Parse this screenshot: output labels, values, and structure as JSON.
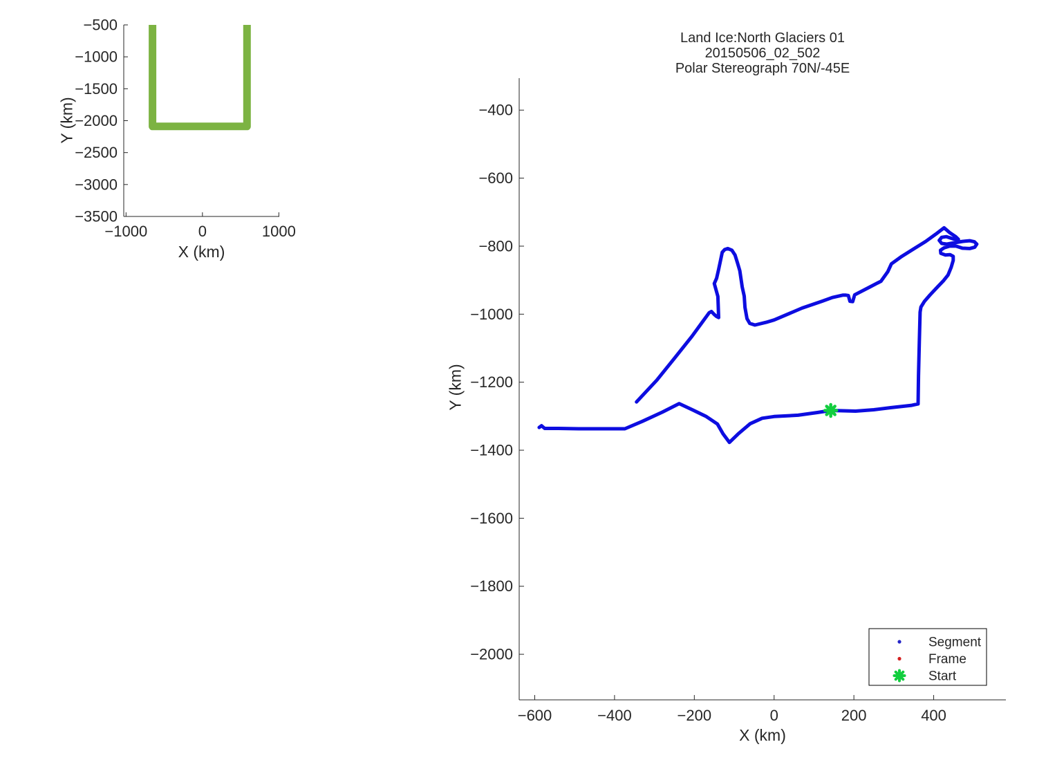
{
  "figure": {
    "background": "#ffffff",
    "axis_color": "#262626",
    "text_color": "#262626"
  },
  "chart_data": [
    {
      "id": "coverage-overview",
      "type": "line",
      "title": [],
      "xlabel": "X (km)",
      "ylabel": "Y (km)",
      "xlim": [
        -1030,
        1006
      ],
      "ylim": [
        -3500,
        -500
      ],
      "xticks": [
        -1000,
        0,
        1000
      ],
      "yticks": [
        -500,
        -1000,
        -1500,
        -2000,
        -2500,
        -3000,
        -3500
      ],
      "grid": false,
      "legend_position": null,
      "series": [
        {
          "name": "coverage-track",
          "color": "#7CB342",
          "width": 11,
          "points": [
            [
              -654,
              -500
            ],
            [
              -654,
              -2090
            ],
            [
              583,
              -2090
            ],
            [
              583,
              -500
            ]
          ]
        }
      ],
      "markers": []
    },
    {
      "id": "flight-track",
      "type": "line",
      "title": [
        "Land Ice:North Glaciers 01",
        "20150506_02_502",
        "Polar Stereograph 70N/-45E"
      ],
      "xlabel": "X (km)",
      "ylabel": "Y (km)",
      "xlim": [
        -639,
        581
      ],
      "ylim": [
        -2134,
        -306
      ],
      "xticks": [
        -600,
        -400,
        -200,
        0,
        200,
        400
      ],
      "yticks": [
        -400,
        -600,
        -800,
        -1000,
        -1200,
        -1400,
        -1600,
        -1800,
        -2000
      ],
      "grid": false,
      "legend_position": "southeast",
      "series": [
        {
          "name": "Segment",
          "color": "#0D0DE0",
          "width": 5,
          "points": [
            [
              -345,
              -1258
            ],
            [
              -294,
              -1194
            ],
            [
              -250,
              -1130
            ],
            [
              -206,
              -1065
            ],
            [
              -168,
              -1004
            ],
            [
              -163,
              -996
            ],
            [
              -157,
              -992
            ],
            [
              -150,
              -1001
            ],
            [
              -144,
              -1007
            ],
            [
              -139,
              -1010
            ],
            [
              -140,
              -975
            ],
            [
              -141,
              -948
            ],
            [
              -150,
              -910
            ],
            [
              -144,
              -894
            ],
            [
              -139,
              -868
            ],
            [
              -136,
              -851
            ],
            [
              -130,
              -818
            ],
            [
              -124,
              -810
            ],
            [
              -116,
              -807
            ],
            [
              -106,
              -812
            ],
            [
              -98,
              -826
            ],
            [
              -92,
              -848
            ],
            [
              -86,
              -872
            ],
            [
              -80,
              -920
            ],
            [
              -75,
              -947
            ],
            [
              -73,
              -980
            ],
            [
              -68,
              -1013
            ],
            [
              -61,
              -1027
            ],
            [
              -48,
              -1032
            ],
            [
              -20,
              -1024
            ],
            [
              0,
              -1017
            ],
            [
              70,
              -982
            ],
            [
              120,
              -962
            ],
            [
              146,
              -951
            ],
            [
              172,
              -944
            ],
            [
              180,
              -944
            ],
            [
              186,
              -945
            ],
            [
              190,
              -962
            ],
            [
              197,
              -963
            ],
            [
              202,
              -943
            ],
            [
              240,
              -920
            ],
            [
              268,
              -903
            ],
            [
              285,
              -875
            ],
            [
              294,
              -852
            ],
            [
              320,
              -830
            ],
            [
              350,
              -808
            ],
            [
              380,
              -786
            ],
            [
              405,
              -765
            ],
            [
              426,
              -746
            ],
            [
              440,
              -760
            ],
            [
              455,
              -772
            ],
            [
              462,
              -780
            ],
            [
              450,
              -779
            ],
            [
              432,
              -772
            ],
            [
              420,
              -774
            ],
            [
              414,
              -783
            ],
            [
              420,
              -792
            ],
            [
              433,
              -794
            ],
            [
              452,
              -790
            ],
            [
              472,
              -786
            ],
            [
              490,
              -784
            ],
            [
              502,
              -787
            ],
            [
              508,
              -794
            ],
            [
              503,
              -803
            ],
            [
              490,
              -807
            ],
            [
              472,
              -806
            ],
            [
              456,
              -800
            ],
            [
              440,
              -800
            ],
            [
              426,
              -805
            ],
            [
              417,
              -812
            ],
            [
              418,
              -821
            ],
            [
              429,
              -826
            ],
            [
              441,
              -825
            ],
            [
              449,
              -830
            ],
            [
              449,
              -842
            ],
            [
              444,
              -862
            ],
            [
              436,
              -885
            ],
            [
              425,
              -901
            ],
            [
              408,
              -922
            ],
            [
              391,
              -943
            ],
            [
              377,
              -962
            ],
            [
              368,
              -979
            ],
            [
              366,
              -994
            ],
            [
              364,
              -1080
            ],
            [
              362,
              -1180
            ],
            [
              361,
              -1264
            ],
            [
              345,
              -1268
            ],
            [
              292,
              -1275
            ],
            [
              250,
              -1281
            ],
            [
              204,
              -1285
            ],
            [
              142,
              -1283
            ],
            [
              110,
              -1289
            ],
            [
              60,
              -1297
            ],
            [
              0,
              -1301
            ],
            [
              -30,
              -1306
            ],
            [
              -60,
              -1322
            ],
            [
              -90,
              -1352
            ],
            [
              -112,
              -1377
            ],
            [
              -128,
              -1352
            ],
            [
              -142,
              -1323
            ],
            [
              -170,
              -1301
            ],
            [
              -205,
              -1281
            ],
            [
              -238,
              -1263
            ],
            [
              -280,
              -1288
            ],
            [
              -330,
              -1315
            ],
            [
              -374,
              -1337
            ],
            [
              -430,
              -1337
            ],
            [
              -490,
              -1337
            ],
            [
              -540,
              -1336
            ],
            [
              -575,
              -1336
            ],
            [
              -583,
              -1328
            ],
            [
              -589,
              -1333
            ]
          ]
        }
      ],
      "markers": [
        {
          "name": "Start",
          "x": 142,
          "y": -1283,
          "color": "#12CE3E",
          "shape": "asterisk",
          "size": 8.5,
          "stroke": 4.5
        }
      ],
      "legend": {
        "items": [
          {
            "label": "Segment",
            "marker": "dot",
            "color": "#2525C8"
          },
          {
            "label": "Frame",
            "marker": "dot",
            "color": "#D42020"
          },
          {
            "label": "Start",
            "marker": "asterisk",
            "color": "#12CE3E"
          }
        ]
      }
    }
  ]
}
